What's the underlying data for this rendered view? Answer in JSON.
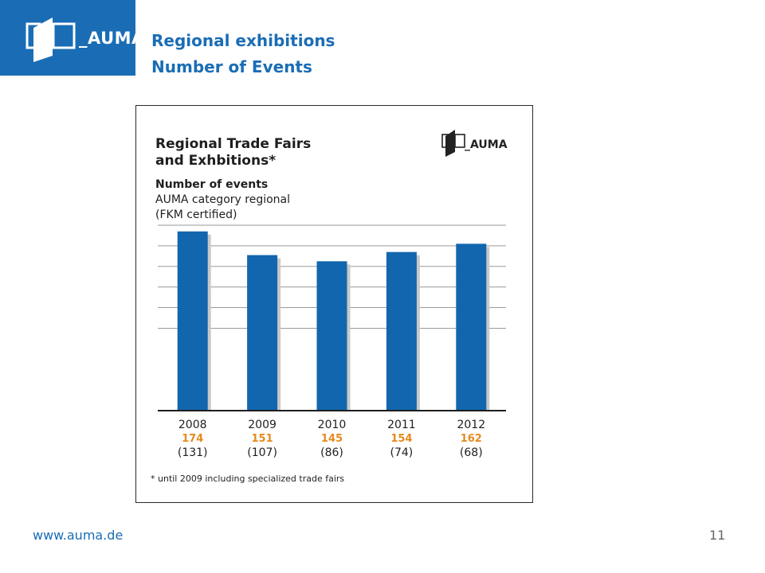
{
  "header": {
    "logo_text": "_AUMA",
    "title_line1": "Regional exhibitions",
    "title_line2": "Number of Events"
  },
  "chart_data": {
    "type": "bar",
    "title_line1": "Regional Trade Fairs",
    "title_line2": "and Exhbitions*",
    "subtitle_bold": "Number of events",
    "subtitle_line2": "AUMA category regional",
    "subtitle_line3": "(FKM certified)",
    "logo_text": "_AUMA",
    "categories": [
      "2008",
      "2009",
      "2010",
      "2011",
      "2012"
    ],
    "values": [
      174,
      151,
      145,
      154,
      162
    ],
    "value_labels": [
      "174",
      "151",
      "145",
      "154",
      "162"
    ],
    "secondary_labels": [
      "(131)",
      "(107)",
      "(86)",
      "(74)",
      "(68)"
    ],
    "ylim": [
      0,
      180
    ],
    "grid": true,
    "footnote": "* until 2009 including specialized trade fairs"
  },
  "footer": {
    "url": "www.auma.de",
    "page_number": "11"
  },
  "colors": {
    "brand_blue": "#1a6db5",
    "bar_blue": "#1266ae",
    "value_orange": "#e8891e"
  }
}
